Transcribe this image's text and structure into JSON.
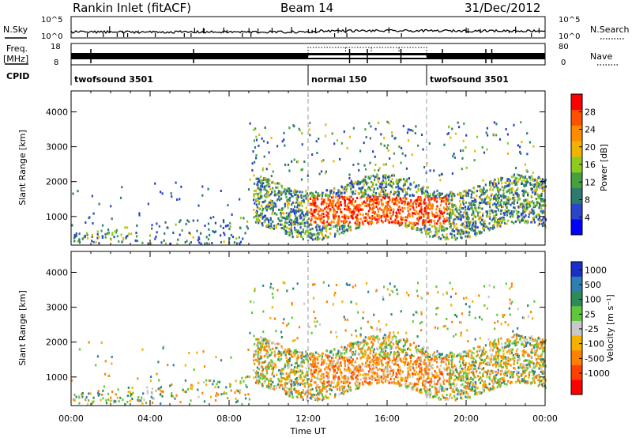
{
  "header": {
    "station": "Rankin Inlet (fitACF)",
    "beam": "Beam 14",
    "date": "31/Dec/2012"
  },
  "strip_labels": {
    "nsky": "N.Sky",
    "nsearch": "N.Search",
    "freq_top": "Freq.",
    "freq_unit": "[MHz]",
    "nave": "Nave",
    "cpid": "CPID",
    "nsky_ticks": [
      "10^5",
      "10^0"
    ],
    "nsearch_ticks": [
      "10^5",
      "10^0"
    ],
    "freq_ticks": [
      "18",
      "8"
    ],
    "nave_ticks": [
      "80",
      "0"
    ]
  },
  "cpid_segments": [
    {
      "label": "twofsound 3501",
      "start_hr": 0,
      "end_hr": 12
    },
    {
      "label": "normal 150",
      "start_hr": 12,
      "end_hr": 18
    },
    {
      "label": "twofsound 3501",
      "start_hr": 18,
      "end_hr": 24
    }
  ],
  "chart_data": [
    {
      "type": "heatmap",
      "name": "power",
      "ylabel": "Slant Range [km]",
      "xlabel": "Time UT",
      "x_ticks": [
        "00:00",
        "04:00",
        "08:00",
        "12:00",
        "16:00",
        "20:00",
        "00:00"
      ],
      "xlim_hr": [
        0,
        24
      ],
      "y_ticks": [
        1000,
        2000,
        3000,
        4000
      ],
      "ylim": [
        180,
        4600
      ],
      "colorbar": {
        "label": "Power [dB]",
        "ticks": [
          4,
          8,
          12,
          16,
          20,
          24,
          28
        ],
        "range": [
          0,
          32
        ],
        "colors": [
          "#0000ff",
          "#2b45c8",
          "#2e7a6e",
          "#46a040",
          "#8ccc1f",
          "#f0b400",
          "#ff8c00",
          "#ff5000",
          "#ff0000"
        ]
      }
    },
    {
      "type": "heatmap",
      "name": "velocity",
      "ylabel": "Slant Range [km]",
      "xlabel": "Time UT",
      "x_ticks": [
        "00:00",
        "04:00",
        "08:00",
        "12:00",
        "16:00",
        "20:00",
        "00:00"
      ],
      "xlim_hr": [
        0,
        24
      ],
      "y_ticks": [
        1000,
        2000,
        3000,
        4000
      ],
      "ylim": [
        180,
        4600
      ],
      "colorbar": {
        "label": "Velocity [m s⁻¹]",
        "ticks": [
          "1000",
          "500",
          "100",
          "25",
          "-25",
          "-100",
          "-500",
          "-1000"
        ],
        "colors": [
          "#1a2fc8",
          "#2d7fb0",
          "#2e8b57",
          "#5fc83a",
          "#c8c8c8",
          "#f5b000",
          "#ff7f00",
          "#ff4000",
          "#ff0000"
        ]
      }
    }
  ],
  "axis": {
    "xlabel": "Time UT",
    "x_ticks": [
      "00:00",
      "04:00",
      "08:00",
      "12:00",
      "16:00",
      "20:00",
      "00:00"
    ]
  }
}
